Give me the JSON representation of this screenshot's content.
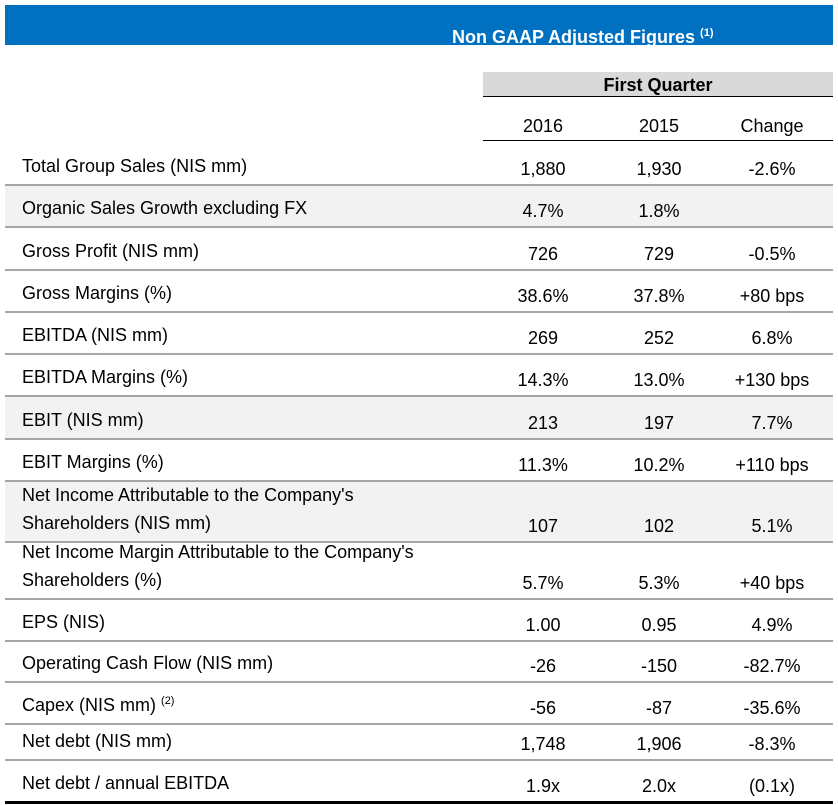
{
  "header": {
    "title": "Non GAAP Adjusted Figures",
    "title_note": "(1)"
  },
  "period": "First Quarter",
  "columns": [
    "2016",
    "2015",
    "Change"
  ],
  "rows": [
    {
      "label": "Total Group Sales (NIS mm)",
      "v2016": "1,880",
      "v2015": "1,930",
      "change": "-2.6%"
    },
    {
      "label": "Organic Sales Growth excluding FX",
      "v2016": "4.7%",
      "v2015": "1.8%",
      "change": ""
    },
    {
      "label": "Gross Profit (NIS mm)",
      "v2016": "726",
      "v2015": "729",
      "change": "-0.5%"
    },
    {
      "label": "Gross Margins (%)",
      "v2016": "38.6%",
      "v2015": "37.8%",
      "change": "+80 bps"
    },
    {
      "label": "EBITDA (NIS mm)",
      "v2016": "269",
      "v2015": "252",
      "change": "6.8%"
    },
    {
      "label": "EBITDA Margins (%)",
      "v2016": "14.3%",
      "v2015": "13.0%",
      "change": "+130 bps"
    },
    {
      "label": "EBIT (NIS mm)",
      "v2016": "213",
      "v2015": "197",
      "change": "7.7%"
    },
    {
      "label": "EBIT Margins (%)",
      "v2016": "11.3%",
      "v2015": "10.2%",
      "change": "+110 bps"
    },
    {
      "label": "Net Income Attributable to the Company's",
      "label2": "Shareholders (NIS mm)",
      "v2016": "107",
      "v2015": "102",
      "change": "5.1%"
    },
    {
      "label": "Net Income Margin Attributable to the Company's",
      "label2": "Shareholders (%)",
      "v2016": "5.7%",
      "v2015": "5.3%",
      "change": "+40 bps"
    },
    {
      "label": "EPS (NIS)",
      "v2016": "1.00",
      "v2015": "0.95",
      "change": "4.9%"
    },
    {
      "label": "Operating Cash Flow (NIS mm)",
      "v2016": "-26",
      "v2015": "-150",
      "change": "-82.7%"
    },
    {
      "label": "Capex (NIS mm)",
      "note": "(2)",
      "v2016": "-56",
      "v2015": "-87",
      "change": "-35.6%"
    },
    {
      "label": "Net debt (NIS mm)",
      "v2016": "1,748",
      "v2015": "1,906",
      "change": "-8.3%"
    },
    {
      "label": "Net debt / annual EBITDA",
      "v2016": "1.9x",
      "v2015": "2.0x",
      "change": "(0.1x)"
    }
  ],
  "colors": {
    "banner": "#0070c0",
    "shade": "#f2f2f2",
    "header_gray": "#d9d9d9"
  }
}
